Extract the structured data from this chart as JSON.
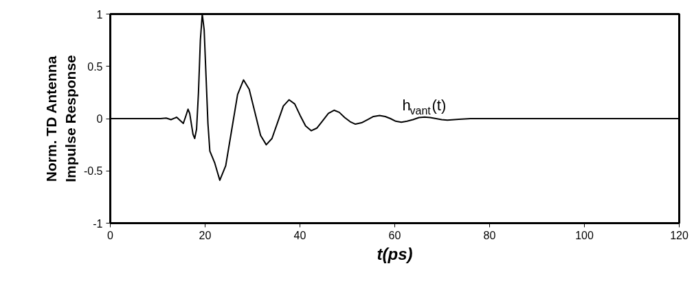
{
  "chart_data": {
    "type": "line",
    "xlabel": "t(ps)",
    "ylabel": "Norm. TD Antenna\nImpulse Response",
    "xlim": [
      0,
      120
    ],
    "ylim": [
      -1,
      1
    ],
    "xticks": [
      0,
      20,
      40,
      60,
      80,
      100,
      120
    ],
    "yticks": [
      -1,
      -0.5,
      0,
      0.5,
      1
    ],
    "grid": false,
    "marker": "none",
    "line_style": "solid",
    "series": [
      {
        "name": "h$_{vant}$(t)",
        "color": "#000000",
        "x": [
          0,
          5,
          10,
          10.6,
          11.8,
          12.8,
          14,
          15.4,
          15.9,
          16.4,
          16.75,
          17.1,
          17.45,
          17.8,
          18.2,
          18.6,
          19,
          19.4,
          19.8,
          20.2,
          20.6,
          21,
          22,
          23.1,
          24.35,
          25.6,
          26.85,
          28.1,
          29.3,
          30.5,
          31.7,
          32.9,
          34.1,
          35.3,
          36.5,
          37.7,
          38.9,
          40.05,
          41.2,
          42.4,
          43.6,
          44.8,
          46,
          47.2,
          48.3,
          49.45,
          50.6,
          51.7,
          53,
          54.25,
          55.5,
          56.8,
          58,
          59.1,
          60.2,
          61.4,
          62.6,
          63.85,
          65.1,
          66.3,
          67.5,
          68.7,
          69.9,
          71.1,
          73.5,
          76,
          80,
          85,
          90,
          100,
          110,
          120
        ],
        "values": [
          0,
          0,
          0,
          0,
          0.005,
          -0.01,
          0.013,
          -0.046,
          0.02,
          0.09,
          0.05,
          -0.05,
          -0.15,
          -0.19,
          -0.1,
          0.25,
          0.75,
          1,
          0.85,
          0.4,
          -0.05,
          -0.31,
          -0.42,
          -0.59,
          -0.45,
          -0.11,
          0.23,
          0.37,
          0.28,
          0.06,
          -0.16,
          -0.25,
          -0.19,
          -0.035,
          0.12,
          0.18,
          0.14,
          0.03,
          -0.07,
          -0.116,
          -0.09,
          -0.02,
          0.05,
          0.08,
          0.06,
          0.01,
          -0.03,
          -0.053,
          -0.04,
          -0.01,
          0.02,
          0.03,
          0.02,
          0,
          -0.025,
          -0.035,
          -0.025,
          -0.01,
          0.01,
          0.015,
          0.01,
          0,
          -0.01,
          -0.015,
          -0.007,
          0,
          0,
          0,
          0,
          0,
          0,
          0
        ]
      }
    ]
  }
}
